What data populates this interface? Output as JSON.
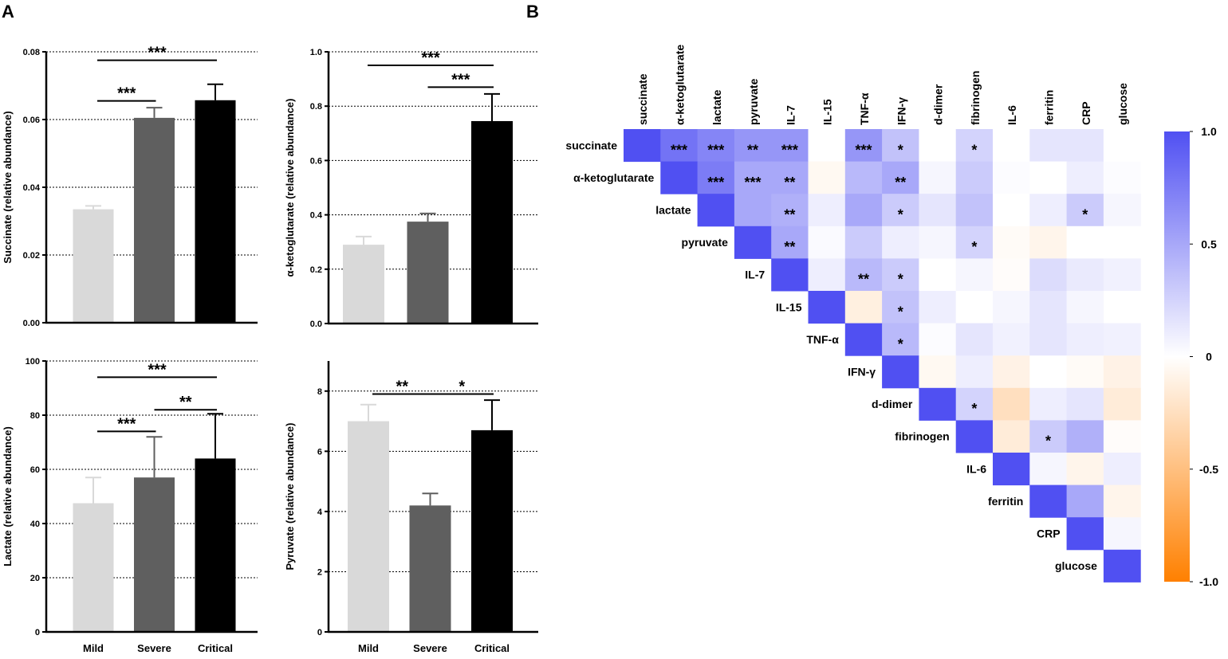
{
  "panel_labels": [
    "A",
    "B"
  ],
  "chart_data": [
    {
      "type": "bar",
      "ylabel": "Succinate (relative abundance)",
      "categories": [
        null,
        null,
        null
      ],
      "values": [
        0.0335,
        0.0605,
        0.0657
      ],
      "errors": [
        0.001,
        0.003,
        0.0047
      ],
      "colors": [
        "#d9d9d9",
        "#5f5f5f",
        "#000000"
      ],
      "ylim": [
        0,
        0.08
      ],
      "yticks": [
        {
          "value": 0,
          "label": "0.00"
        },
        {
          "value": 0.02,
          "label": "0.02"
        },
        {
          "value": 0.04,
          "label": "0.04"
        },
        {
          "value": 0.06,
          "label": "0.06"
        },
        {
          "value": 0.08,
          "label": "0.08"
        }
      ],
      "grid": true,
      "annotations": [
        {
          "label": "***",
          "from": 0,
          "to": 1,
          "y": 0.0655
        },
        {
          "label": "***",
          "from": 0,
          "to": 2,
          "y": 0.0775
        }
      ]
    },
    {
      "type": "bar",
      "ylabel": "α-ketoglutarate (relative abundance)",
      "categories": [
        null,
        null,
        null
      ],
      "values": [
        0.29,
        0.375,
        0.745
      ],
      "errors": [
        0.03,
        0.03,
        0.1
      ],
      "colors": [
        "#d9d9d9",
        "#5f5f5f",
        "#000000"
      ],
      "ylim": [
        0,
        1
      ],
      "yticks": [
        {
          "value": 0,
          "label": "0.0"
        },
        0.2,
        0.4,
        0.6,
        0.8,
        {
          "value": 1,
          "label": "1.0"
        }
      ],
      "grid": true,
      "annotations": [
        {
          "label": "***",
          "from": 0,
          "to": 2,
          "y": 0.95
        },
        {
          "label": "***",
          "from": 1,
          "to": 2,
          "y": 0.87
        }
      ]
    },
    {
      "type": "bar",
      "ylabel": "Lactate (relative abundance)",
      "categories": [
        "Mild",
        "Severe",
        "Critical"
      ],
      "values": [
        47.5,
        57,
        64
      ],
      "errors": [
        9.5,
        15,
        16.5
      ],
      "colors": [
        "#d9d9d9",
        "#5f5f5f",
        "#000000"
      ],
      "ylim": [
        0,
        100
      ],
      "yticks": [
        0,
        20,
        40,
        60,
        80,
        100
      ],
      "grid": true,
      "annotations": [
        {
          "label": "***",
          "from": 0,
          "to": 2,
          "y": 94
        },
        {
          "label": "**",
          "from": 1,
          "to": 2,
          "y": 82
        },
        {
          "label": "***",
          "from": 0,
          "to": 1,
          "y": 74
        }
      ]
    },
    {
      "type": "bar",
      "ylabel": "Pyruvate (relative abundance)",
      "categories": [
        "Mild",
        "Severe",
        "Critical"
      ],
      "values": [
        7.0,
        4.2,
        6.7
      ],
      "errors": [
        0.55,
        0.4,
        1.0
      ],
      "colors": [
        "#d9d9d9",
        "#5f5f5f",
        "#000000"
      ],
      "ylim": [
        0,
        9
      ],
      "yticks": [
        0,
        2,
        4,
        6,
        8
      ],
      "grid": true,
      "annotations": [
        {
          "label": "**",
          "from": 0,
          "to": 1,
          "y": 7.9
        },
        {
          "label": "*",
          "from": 1,
          "to": 2,
          "y": 7.9
        }
      ]
    },
    {
      "type": "heatmap",
      "labels": [
        "succinate",
        "α-ketoglutarate",
        "lactate",
        "pyruvate",
        "IL-7",
        "IL-15",
        "TNF-α",
        "IFN-γ",
        "d-dimer",
        "fibrinogen",
        "IL-6",
        "ferritin",
        "CRP",
        "glucose"
      ],
      "values": [
        [
          1,
          0.8,
          0.7,
          0.6,
          0.6,
          0.0,
          0.6,
          0.35,
          0.0,
          0.25,
          0.0,
          0.15,
          0.15,
          0.0
        ],
        [
          null,
          1,
          0.75,
          0.5,
          0.5,
          -0.05,
          0.4,
          0.5,
          0.05,
          0.3,
          0.02,
          0.0,
          0.1,
          0.02
        ],
        [
          null,
          null,
          1,
          0.5,
          0.45,
          0.1,
          0.5,
          0.3,
          0.15,
          0.35,
          0.0,
          0.1,
          0.3,
          0.05
        ],
        [
          null,
          null,
          null,
          1,
          0.5,
          0.03,
          0.3,
          0.1,
          0.05,
          0.25,
          -0.03,
          -0.08,
          0.0,
          0.0
        ],
        [
          null,
          null,
          null,
          null,
          1,
          0.1,
          0.4,
          0.3,
          0.0,
          0.05,
          -0.02,
          0.2,
          0.12,
          0.08
        ],
        [
          null,
          null,
          null,
          null,
          null,
          1,
          -0.12,
          0.35,
          0.1,
          0.0,
          0.05,
          0.15,
          0.05,
          0.0
        ],
        [
          null,
          null,
          null,
          null,
          null,
          null,
          1,
          0.4,
          0.02,
          0.15,
          0.08,
          0.15,
          0.1,
          0.08
        ],
        [
          null,
          null,
          null,
          null,
          null,
          null,
          null,
          1,
          -0.05,
          0.1,
          -0.1,
          0.0,
          -0.03,
          -0.1
        ],
        [
          null,
          null,
          null,
          null,
          null,
          null,
          null,
          null,
          1,
          0.25,
          -0.25,
          0.1,
          0.15,
          -0.15
        ],
        [
          null,
          null,
          null,
          null,
          null,
          null,
          null,
          null,
          null,
          1,
          -0.15,
          0.3,
          0.45,
          -0.02
        ],
        [
          null,
          null,
          null,
          null,
          null,
          null,
          null,
          null,
          null,
          null,
          1,
          0.05,
          -0.08,
          0.1
        ],
        [
          null,
          null,
          null,
          null,
          null,
          null,
          null,
          null,
          null,
          null,
          null,
          1,
          0.5,
          -0.08
        ],
        [
          null,
          null,
          null,
          null,
          null,
          null,
          null,
          null,
          null,
          null,
          null,
          null,
          1,
          0.05
        ],
        [
          null,
          null,
          null,
          null,
          null,
          null,
          null,
          null,
          null,
          null,
          null,
          null,
          null,
          1
        ]
      ],
      "significance": [
        [
          null,
          "***",
          "***",
          "**",
          "***",
          null,
          "***",
          "*",
          null,
          "*",
          null,
          null,
          null,
          null
        ],
        [
          null,
          null,
          "***",
          "***",
          "**",
          null,
          null,
          "**",
          null,
          null,
          null,
          null,
          null,
          null
        ],
        [
          null,
          null,
          null,
          null,
          "**",
          null,
          null,
          "*",
          null,
          null,
          null,
          null,
          "*",
          null
        ],
        [
          null,
          null,
          null,
          null,
          "**",
          null,
          null,
          null,
          null,
          "*",
          null,
          null,
          null,
          null
        ],
        [
          null,
          null,
          null,
          null,
          null,
          null,
          "**",
          "*",
          null,
          null,
          null,
          null,
          null,
          null
        ],
        [
          null,
          null,
          null,
          null,
          null,
          null,
          null,
          "*",
          null,
          null,
          null,
          null,
          null,
          null
        ],
        [
          null,
          null,
          null,
          null,
          null,
          null,
          null,
          "*",
          null,
          null,
          null,
          null,
          null,
          null
        ],
        [
          null,
          null,
          null,
          null,
          null,
          null,
          null,
          null,
          null,
          null,
          null,
          null,
          null,
          null
        ],
        [
          null,
          null,
          null,
          null,
          null,
          null,
          null,
          null,
          null,
          "*",
          null,
          null,
          null,
          null
        ],
        [
          null,
          null,
          null,
          null,
          null,
          null,
          null,
          null,
          null,
          null,
          null,
          "*",
          null,
          null
        ],
        [
          null,
          null,
          null,
          null,
          null,
          null,
          null,
          null,
          null,
          null,
          null,
          null,
          null,
          null
        ],
        [
          null,
          null,
          null,
          null,
          null,
          null,
          null,
          null,
          null,
          null,
          null,
          null,
          null,
          null
        ],
        [
          null,
          null,
          null,
          null,
          null,
          null,
          null,
          null,
          null,
          null,
          null,
          null,
          null,
          null
        ],
        [
          null,
          null,
          null,
          null,
          null,
          null,
          null,
          null,
          null,
          null,
          null,
          null,
          null,
          null
        ]
      ],
      "colorscale": [
        "#ff8000",
        "#ffffff",
        "#5050f2"
      ],
      "zlim": [
        -1,
        1
      ],
      "zticks": [
        {
          "value": 1,
          "label": "1.0"
        },
        0.5,
        0,
        -0.5,
        {
          "value": -1,
          "label": "-1.0"
        }
      ]
    }
  ]
}
